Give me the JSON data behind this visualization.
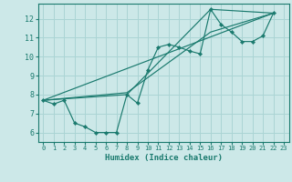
{
  "xlabel": "Humidex (Indice chaleur)",
  "xlim": [
    -0.5,
    23.5
  ],
  "ylim": [
    5.5,
    12.8
  ],
  "yticks": [
    6,
    7,
    8,
    9,
    10,
    11,
    12
  ],
  "xticks": [
    0,
    1,
    2,
    3,
    4,
    5,
    6,
    7,
    8,
    9,
    10,
    11,
    12,
    13,
    14,
    15,
    16,
    17,
    18,
    19,
    20,
    21,
    22,
    23
  ],
  "bg_color": "#cce8e8",
  "grid_color": "#aad4d4",
  "line_color": "#1a7a6e",
  "main_line": {
    "x": [
      0,
      1,
      2,
      3,
      4,
      5,
      6,
      7,
      8,
      9,
      10,
      11,
      12,
      13,
      14,
      15,
      16,
      17,
      18,
      19,
      20,
      21,
      22
    ],
    "y": [
      7.7,
      7.5,
      7.7,
      6.5,
      6.3,
      6.0,
      6.0,
      6.0,
      8.0,
      7.55,
      9.3,
      10.5,
      10.65,
      10.5,
      10.3,
      10.15,
      12.5,
      11.7,
      11.3,
      10.8,
      10.8,
      11.1,
      12.3
    ]
  },
  "straight_lines": [
    {
      "x": [
        0,
        22
      ],
      "y": [
        7.7,
        12.3
      ]
    },
    {
      "x": [
        0,
        8,
        16,
        22
      ],
      "y": [
        7.7,
        8.0,
        12.5,
        12.3
      ]
    },
    {
      "x": [
        0,
        8,
        16,
        22
      ],
      "y": [
        7.7,
        8.1,
        11.3,
        12.3
      ]
    }
  ]
}
